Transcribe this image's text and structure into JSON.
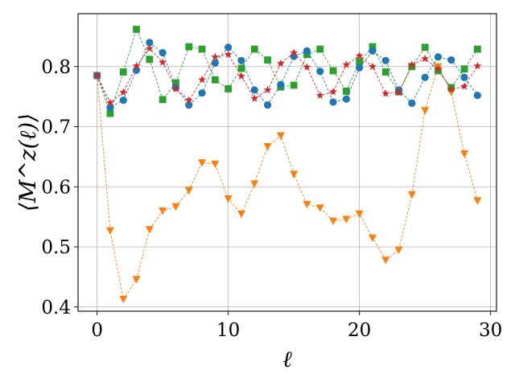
{
  "chart_data": {
    "type": "line",
    "xlabel": "ℓ",
    "ylabel": "⟨M^z(ℓ)⟩",
    "xlim": [
      -1.45,
      30.45
    ],
    "ylim": [
      0.393,
      0.888
    ],
    "x_ticks": [
      0,
      10,
      20,
      30
    ],
    "y_ticks": [
      0.4,
      0.5,
      0.6,
      0.7,
      0.8
    ],
    "x_tick_labels": [
      "0",
      "10",
      "20",
      "30"
    ],
    "y_tick_labels": [
      "0.4",
      "0.5",
      "0.6",
      "0.7",
      "0.8"
    ],
    "grid": true,
    "series": [
      {
        "color": "#ff7f0e",
        "marker": "triangle-down",
        "x": [
          0,
          1,
          2,
          3,
          4,
          5,
          6,
          7,
          8,
          9,
          10,
          11,
          12,
          13,
          14,
          15,
          16,
          17,
          18,
          19,
          20,
          21,
          22,
          23,
          24,
          25,
          26,
          27,
          28,
          29
        ],
        "values": [
          0.785,
          0.527,
          0.413,
          0.446,
          0.529,
          0.56,
          0.567,
          0.594,
          0.64,
          0.638,
          0.58,
          0.555,
          0.605,
          0.667,
          0.685,
          0.621,
          0.571,
          0.565,
          0.543,
          0.546,
          0.555,
          0.515,
          0.478,
          0.495,
          0.587,
          0.727,
          0.8,
          0.758,
          0.655,
          0.577
        ]
      },
      {
        "color": "#2ca02c",
        "marker": "square",
        "x": [
          0,
          1,
          2,
          3,
          4,
          5,
          6,
          7,
          8,
          9,
          10,
          11,
          12,
          13,
          14,
          15,
          16,
          17,
          18,
          19,
          20,
          21,
          22,
          23,
          24,
          25,
          26,
          27,
          28,
          29
        ],
        "values": [
          0.785,
          0.722,
          0.791,
          0.862,
          0.812,
          0.745,
          0.773,
          0.833,
          0.829,
          0.778,
          0.763,
          0.797,
          0.829,
          0.811,
          0.766,
          0.769,
          0.82,
          0.829,
          0.793,
          0.759,
          0.808,
          0.833,
          0.791,
          0.758,
          0.8,
          0.832,
          0.793,
          0.765,
          0.796,
          0.829
        ]
      },
      {
        "color": "#1f77b4",
        "marker": "circle",
        "x": [
          0,
          1,
          2,
          3,
          4,
          5,
          6,
          7,
          8,
          9,
          10,
          11,
          12,
          13,
          14,
          15,
          16,
          17,
          18,
          19,
          20,
          21,
          22,
          23,
          24,
          25,
          26,
          27,
          28,
          29
        ],
        "values": [
          0.785,
          0.732,
          0.744,
          0.794,
          0.84,
          0.823,
          0.765,
          0.736,
          0.756,
          0.806,
          0.832,
          0.81,
          0.761,
          0.736,
          0.77,
          0.817,
          0.826,
          0.792,
          0.741,
          0.746,
          0.798,
          0.826,
          0.81,
          0.761,
          0.739,
          0.782,
          0.816,
          0.811,
          0.782,
          0.752
        ]
      },
      {
        "color": "#d62728",
        "marker": "star",
        "x": [
          0,
          1,
          2,
          3,
          4,
          5,
          6,
          7,
          8,
          9,
          10,
          11,
          12,
          13,
          14,
          15,
          16,
          17,
          18,
          19,
          20,
          21,
          22,
          23,
          24,
          25,
          26,
          27,
          28,
          29
        ],
        "values": [
          0.785,
          0.74,
          0.757,
          0.801,
          0.83,
          0.807,
          0.763,
          0.744,
          0.778,
          0.816,
          0.82,
          0.784,
          0.747,
          0.761,
          0.805,
          0.823,
          0.799,
          0.752,
          0.758,
          0.803,
          0.818,
          0.8,
          0.755,
          0.757,
          0.803,
          0.813,
          0.796,
          0.762,
          0.767,
          0.801
        ]
      }
    ]
  }
}
